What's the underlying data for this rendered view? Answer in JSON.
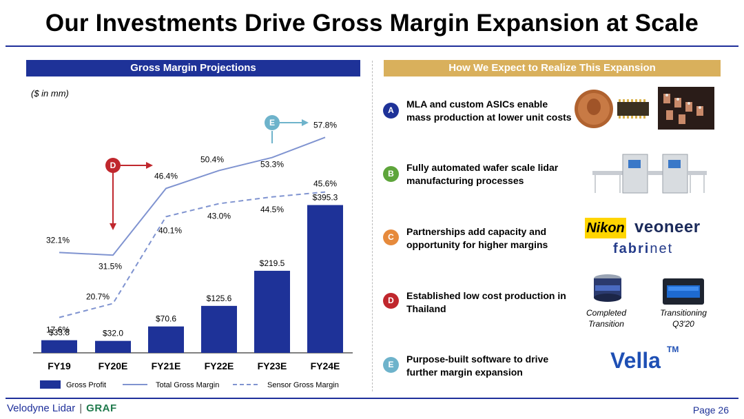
{
  "title": "Our Investments Drive Gross Margin Expansion at Scale",
  "left_panel": {
    "header": "Gross Margin Projections",
    "unit": "($ in mm)"
  },
  "right_panel": {
    "header": "How We Expect to Realize This Expansion",
    "items": [
      {
        "badge": "A",
        "text": "MLA and custom ASICs enable mass production at lower unit costs"
      },
      {
        "badge": "B",
        "text": "Fully automated wafer scale lidar manufacturing processes"
      },
      {
        "badge": "C",
        "text": "Partnerships add capacity and opportunity for higher margins"
      },
      {
        "badge": "D",
        "text": "Established low cost production in Thailand"
      },
      {
        "badge": "E",
        "text": "Purpose-built software to drive further margin expansion"
      }
    ],
    "partners": {
      "nikon": "Nikon",
      "veoneer": "veoneer",
      "fabrinet_bold": "fabri",
      "fabrinet_rest": "net"
    },
    "captions": {
      "completed": "Completed Transition",
      "transitioning": "Transitioning Q3'20"
    },
    "vella": {
      "name": "Vella",
      "tm": "TM"
    }
  },
  "chart_data": {
    "type": "bar",
    "categories": [
      "FY19",
      "FY20E",
      "FY21E",
      "FY22E",
      "FY23E",
      "FY24E"
    ],
    "series": [
      {
        "name": "Gross Profit",
        "type": "bar",
        "values": [
          33.8,
          32.0,
          70.6,
          125.6,
          219.5,
          395.3
        ],
        "labels": [
          "$33.8",
          "$32.0",
          "$70.6",
          "$125.6",
          "$219.5",
          "$395.3"
        ],
        "color": "#1e3298"
      },
      {
        "name": "Total Gross Margin",
        "type": "line",
        "values": [
          32.1,
          31.5,
          46.4,
          50.4,
          53.3,
          57.8
        ],
        "labels": [
          "32.1%",
          "31.5%",
          "46.4%",
          "50.4%",
          "53.3%",
          "57.8%"
        ],
        "color": "#7f93d0"
      },
      {
        "name": "Sensor Gross Margin",
        "type": "line-dashed",
        "values": [
          17.6,
          20.7,
          40.1,
          43.0,
          44.5,
          45.6
        ],
        "labels": [
          "17.6%",
          "20.7%",
          "40.1%",
          "43.0%",
          "44.5%",
          "45.6%"
        ],
        "color": "#7f93d0"
      }
    ],
    "bar_ylim": [
      0,
      400
    ],
    "margin_ylim": [
      10,
      60
    ],
    "markers": [
      {
        "badge": "D",
        "category": "FY20E",
        "color": "#c0272d"
      },
      {
        "badge": "E",
        "category": "FY23E",
        "color": "#6eb3cb"
      }
    ],
    "legend_placement": "bottom"
  },
  "footer": {
    "company": "Velodyne Lidar",
    "separator": "|",
    "partner": "GRAF",
    "page": "Page 26"
  }
}
